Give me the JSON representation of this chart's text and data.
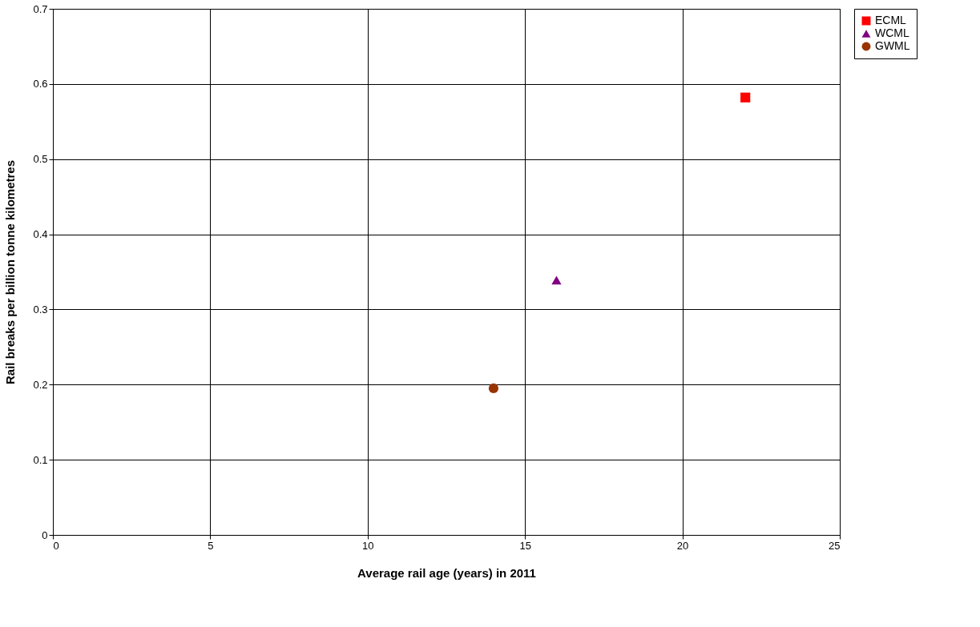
{
  "chart_data": {
    "type": "scatter",
    "xlabel": "Average rail age (years) in 2011",
    "ylabel": "Rail breaks per billion tonne kilometres",
    "xlim": [
      0,
      25
    ],
    "xticks": [
      0,
      5,
      10,
      15,
      20,
      25
    ],
    "ylim": [
      0,
      0.7
    ],
    "yticks": [
      0,
      0.1,
      0.2,
      0.3,
      0.4,
      0.5,
      0.6,
      0.7
    ],
    "grid": true,
    "legend": "right",
    "series": [
      {
        "name": "ECML",
        "color": "#ff0000",
        "marker": "square",
        "x": [
          22
        ],
        "values": [
          0.582
        ]
      },
      {
        "name": "WCML",
        "color": "#800080",
        "marker": "triangle",
        "x": [
          16
        ],
        "values": [
          0.339
        ]
      },
      {
        "name": "GWML",
        "color": "#993300",
        "marker": "circle",
        "x": [
          14
        ],
        "values": [
          0.195
        ]
      }
    ]
  }
}
